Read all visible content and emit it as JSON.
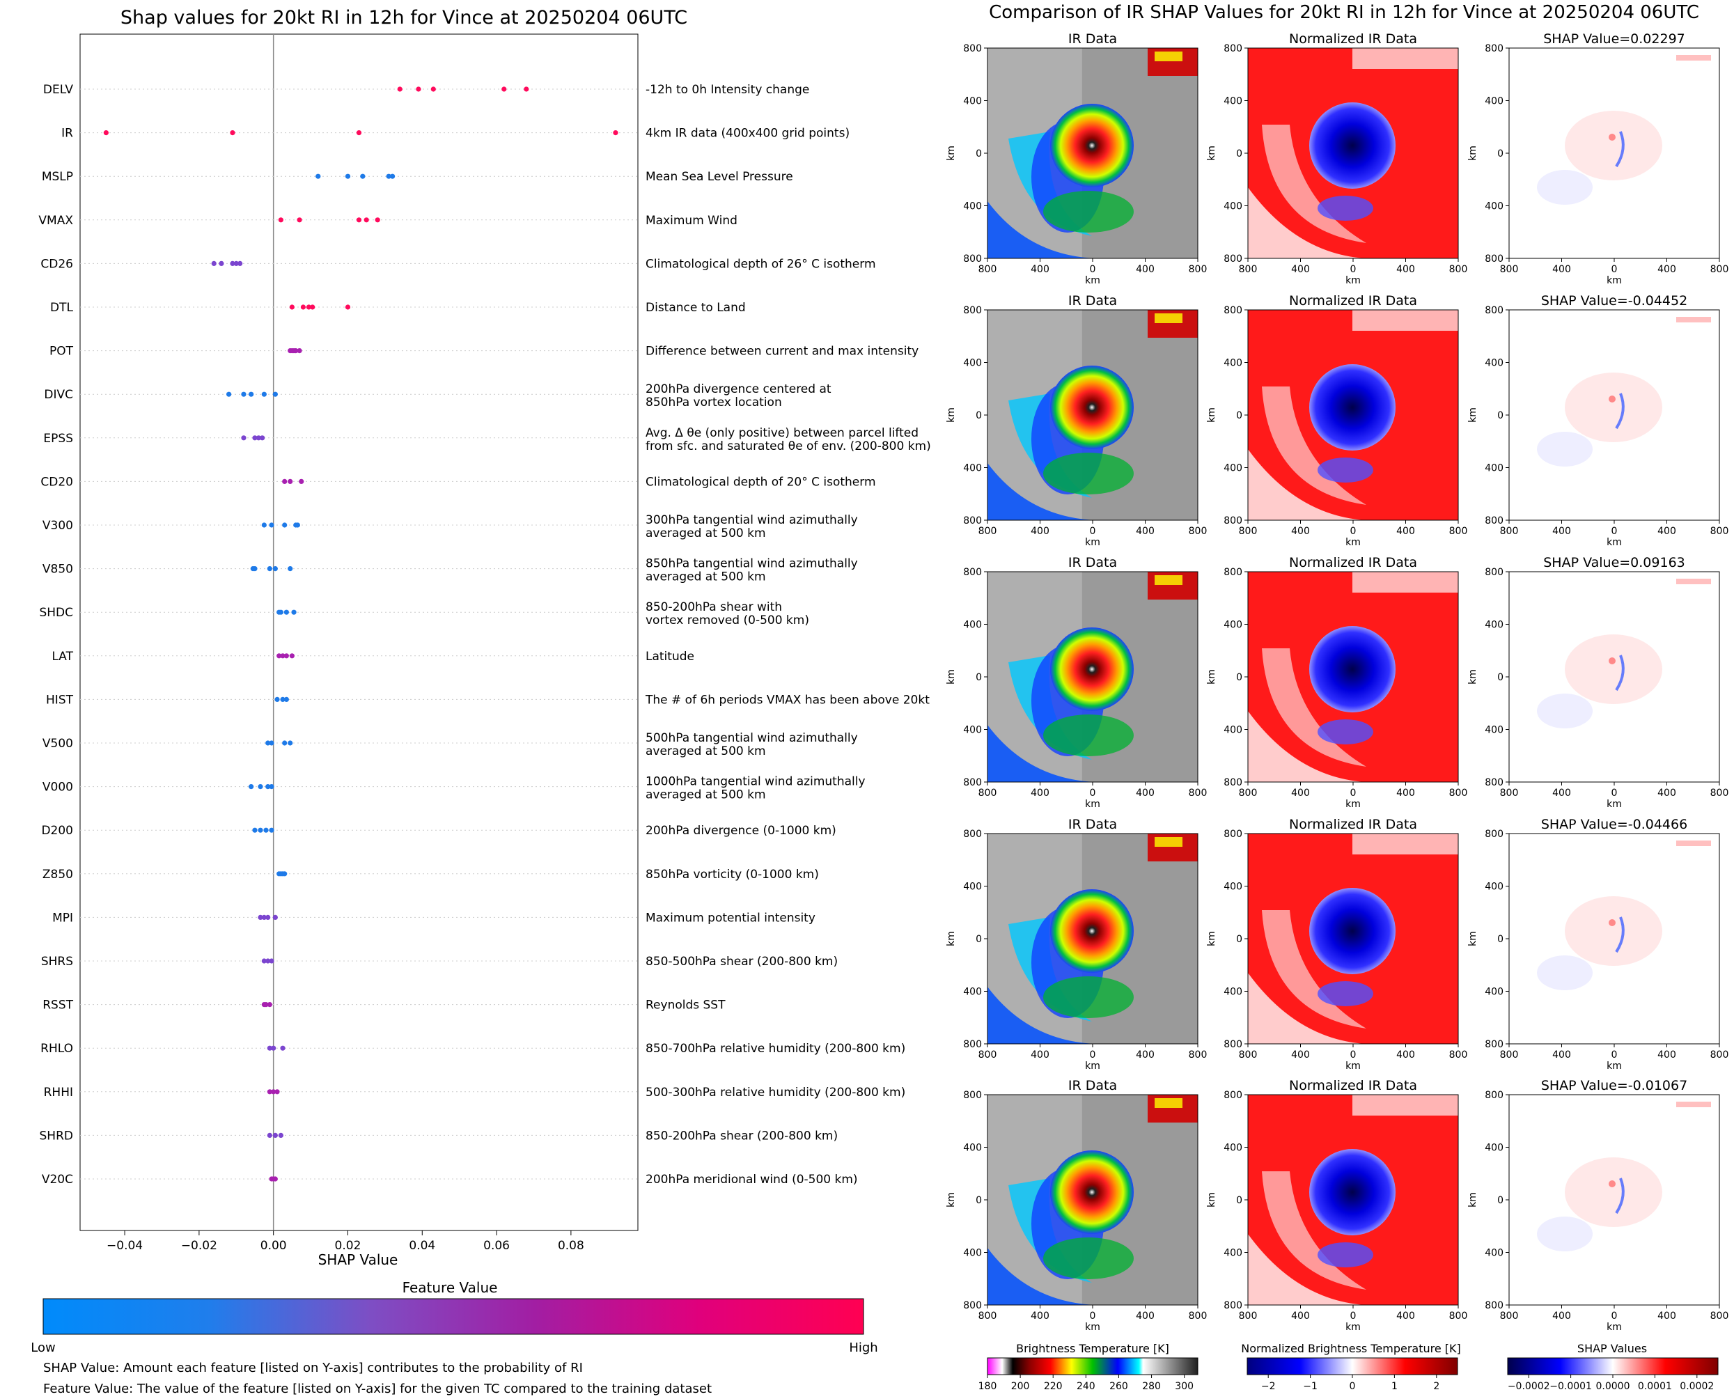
{
  "colors": {
    "low": "#1e88e5",
    "mid": "#7d3fc4",
    "high": "#ff0051",
    "ir_red": "#ff1010",
    "ir_blue": "#0a0ad6",
    "axis_line": "#888888"
  },
  "left": {
    "title": "Shap values for 20kt RI in 12h for Vince at 20250204 06UTC",
    "xlabel": "SHAP Value",
    "xticks": [
      "−0.04",
      "−0.02",
      "0.00",
      "0.02",
      "0.04",
      "0.06",
      "0.08"
    ],
    "colorbar_title": "Feature Value",
    "colorbar_low": "Low",
    "colorbar_high": "High",
    "note1": "SHAP Value: Amount each feature [listed on Y-axis] contributes to the probability of RI",
    "note2": "Feature Value: The value of the feature [listed on Y-axis] for the given TC compared to the training dataset"
  },
  "chart_data": {
    "type": "scatter",
    "xlim": [
      -0.052,
      0.098
    ],
    "xticks": [
      -0.04,
      -0.02,
      0.0,
      0.02,
      0.04,
      0.06,
      0.08
    ],
    "features": [
      {
        "name": "DELV",
        "desc": [
          "-12h to 0h Intensity change"
        ],
        "level": "high",
        "values": [
          0.034,
          0.039,
          0.043,
          0.062,
          0.068
        ]
      },
      {
        "name": "IR",
        "desc": [
          "4km IR data (400x400 grid points)"
        ],
        "level": "high",
        "values": [
          -0.045,
          -0.011,
          0.023,
          0.092
        ]
      },
      {
        "name": "MSLP",
        "desc": [
          "Mean Sea Level Pressure"
        ],
        "level": "low",
        "values": [
          0.012,
          0.02,
          0.024,
          0.031,
          0.032
        ]
      },
      {
        "name": "VMAX",
        "desc": [
          "Maximum Wind"
        ],
        "level": "high",
        "values": [
          0.002,
          0.007,
          0.023,
          0.025,
          0.028
        ]
      },
      {
        "name": "CD26",
        "desc": [
          "Climatological depth of 26° C isotherm"
        ],
        "level": "mid",
        "values": [
          -0.016,
          -0.014,
          -0.011,
          -0.01,
          -0.009
        ]
      },
      {
        "name": "DTL",
        "desc": [
          "Distance to Land"
        ],
        "level": "high",
        "values": [
          0.005,
          0.008,
          0.0095,
          0.0105,
          0.02
        ]
      },
      {
        "name": "POT",
        "desc": [
          "Difference between current and max intensity"
        ],
        "level": "magenta",
        "values": [
          0.0045,
          0.005,
          0.0055,
          0.006,
          0.007
        ]
      },
      {
        "name": "DIVC",
        "desc": [
          "200hPa divergence centered at",
          "850hPa vortex location"
        ],
        "level": "low",
        "values": [
          -0.012,
          -0.008,
          -0.006,
          -0.0025,
          0.0005
        ]
      },
      {
        "name": "EPSS",
        "desc": [
          "Avg. Δ θe (only positive) between parcel lifted",
          "from sfc. and saturated θe of env. (200-800 km)"
        ],
        "level": "mid",
        "values": [
          -0.008,
          -0.005,
          -0.004,
          -0.003
        ]
      },
      {
        "name": "CD20",
        "desc": [
          "Climatological depth of 20° C isotherm"
        ],
        "level": "magenta",
        "values": [
          0.003,
          0.0045,
          0.0075
        ]
      },
      {
        "name": "V300",
        "desc": [
          "300hPa tangential wind azimuthally",
          "averaged at 500 km"
        ],
        "level": "low",
        "values": [
          -0.0025,
          -0.0005,
          0.003,
          0.006,
          0.0065
        ]
      },
      {
        "name": "V850",
        "desc": [
          "850hPa tangential wind azimuthally",
          "averaged at 500 km"
        ],
        "level": "low",
        "values": [
          -0.0055,
          -0.005,
          -0.001,
          0.0005,
          0.0045
        ]
      },
      {
        "name": "SHDC",
        "desc": [
          "850-200hPa shear with",
          "vortex removed (0-500 km)"
        ],
        "level": "low",
        "values": [
          0.0015,
          0.002,
          0.0035,
          0.0055
        ]
      },
      {
        "name": "LAT",
        "desc": [
          "Latitude"
        ],
        "level": "magenta",
        "values": [
          0.0015,
          0.0025,
          0.0035,
          0.005
        ]
      },
      {
        "name": "HIST",
        "desc": [
          "The # of 6h periods VMAX has been above 20kt"
        ],
        "level": "low",
        "values": [
          0.001,
          0.0025,
          0.0035
        ]
      },
      {
        "name": "V500",
        "desc": [
          "500hPa tangential wind azimuthally",
          "averaged at 500 km"
        ],
        "level": "low",
        "values": [
          -0.0015,
          -0.0005,
          0.003,
          0.0045
        ]
      },
      {
        "name": "V000",
        "desc": [
          "1000hPa tangential wind azimuthally",
          "averaged at 500 km"
        ],
        "level": "low",
        "values": [
          -0.006,
          -0.0035,
          -0.0015,
          -0.0005
        ]
      },
      {
        "name": "D200",
        "desc": [
          "200hPa divergence (0-1000 km)"
        ],
        "level": "low",
        "values": [
          -0.005,
          -0.0035,
          -0.002,
          -0.0005
        ]
      },
      {
        "name": "Z850",
        "desc": [
          "850hPa vorticity (0-1000 km)"
        ],
        "level": "low",
        "values": [
          0.0015,
          0.002,
          0.0025,
          0.003
        ]
      },
      {
        "name": "MPI",
        "desc": [
          "Maximum potential intensity"
        ],
        "level": "mid",
        "values": [
          -0.0035,
          -0.0025,
          -0.0015,
          0.0005
        ]
      },
      {
        "name": "SHRS",
        "desc": [
          "850-500hPa shear (200-800 km)"
        ],
        "level": "mid",
        "values": [
          -0.0025,
          -0.0015,
          -0.0005
        ]
      },
      {
        "name": "RSST",
        "desc": [
          "Reynolds SST"
        ],
        "level": "magenta",
        "values": [
          -0.0025,
          -0.002,
          -0.001
        ]
      },
      {
        "name": "RHLO",
        "desc": [
          "850-700hPa relative humidity (200-800 km)"
        ],
        "level": "mid",
        "values": [
          -0.001,
          0.0,
          0.0025
        ]
      },
      {
        "name": "RHHI",
        "desc": [
          "500-300hPa relative humidity (200-800 km)"
        ],
        "level": "magenta",
        "values": [
          -0.001,
          0.0,
          0.001
        ]
      },
      {
        "name": "SHRD",
        "desc": [
          "850-200hPa shear (200-800 km)"
        ],
        "level": "mid",
        "values": [
          -0.001,
          0.0005,
          0.002
        ]
      },
      {
        "name": "V20C",
        "desc": [
          "200hPa meridional wind (0-500 km)"
        ],
        "level": "magenta",
        "values": [
          -0.0005,
          0.0,
          0.0005
        ]
      }
    ]
  },
  "right": {
    "title": "Comparison of IR SHAP Values for 20kt RI in 12h for Vince at 20250204 06UTC",
    "col_titles": [
      "IR Data",
      "Normalized IR Data"
    ],
    "shap_titles": [
      "SHAP Value=0.02297",
      "SHAP Value=-0.04452",
      "SHAP Value=0.09163",
      "SHAP Value=-0.04466",
      "SHAP Value=-0.01067"
    ],
    "axis_ticks": [
      "800",
      "400",
      "0",
      "400",
      "800"
    ],
    "axis_unit": "km",
    "cbar_titles": [
      "Brightness Temperature [K]",
      "Normalized Brightness Temperature [K]",
      "SHAP Values"
    ],
    "cbar_ticks_ir": [
      "180",
      "200",
      "220",
      "240",
      "260",
      "280",
      "300"
    ],
    "cbar_ticks_norm": [
      "−2",
      "−1",
      "0",
      "1",
      "2"
    ],
    "cbar_ticks_shap": [
      "−0.0002",
      "−0.0001",
      "0.0000",
      "0.0001",
      "0.0002"
    ]
  }
}
